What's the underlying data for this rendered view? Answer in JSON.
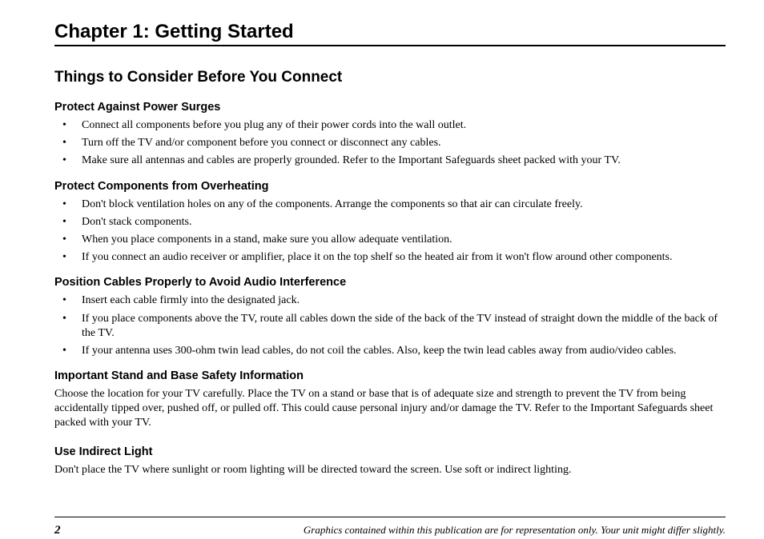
{
  "chapter": {
    "title": "Chapter 1: Getting Started"
  },
  "section": {
    "title": "Things to Consider Before You Connect"
  },
  "sub1": {
    "heading": "Protect Against Power Surges",
    "items": [
      "Connect all components before you plug any of their power cords into the wall outlet.",
      "Turn off the TV and/or component before you connect or disconnect any cables.",
      "Make sure all antennas and cables are properly grounded. Refer to the Important Safeguards sheet packed with your TV."
    ]
  },
  "sub2": {
    "heading": "Protect Components from Overheating",
    "items": [
      "Don't block ventilation holes on any of the components. Arrange the components so that air can circulate freely.",
      "Don't stack components.",
      "When you place components in a stand, make sure you allow adequate ventilation.",
      "If you connect an audio receiver or amplifier, place it on the top shelf so the heated air from it won't flow around other components."
    ]
  },
  "sub3": {
    "heading": "Position Cables Properly to Avoid Audio Interference",
    "items": [
      "Insert each cable firmly into the designated jack.",
      "If you place components above the TV, route all cables down the side of the back of the TV instead of straight down the middle of the back of the TV.",
      "If your antenna uses 300-ohm twin lead cables, do not coil the cables. Also, keep the twin lead cables away from audio/video cables."
    ]
  },
  "sub4": {
    "heading": "Important Stand and Base Safety Information",
    "body": "Choose the location for your TV carefully. Place the TV on a stand or base that is of adequate size and strength to prevent the TV from being accidentally tipped over, pushed off, or pulled off. This could cause personal injury and/or damage the TV. Refer to the Important Safeguards sheet packed with your TV."
  },
  "sub5": {
    "heading": "Use Indirect Light",
    "body": "Don't place the TV where sunlight or room lighting will be directed toward the screen. Use soft or indirect lighting."
  },
  "footer": {
    "page": "2",
    "note": "Graphics contained within this publication are for representation only. Your unit might differ slightly."
  }
}
